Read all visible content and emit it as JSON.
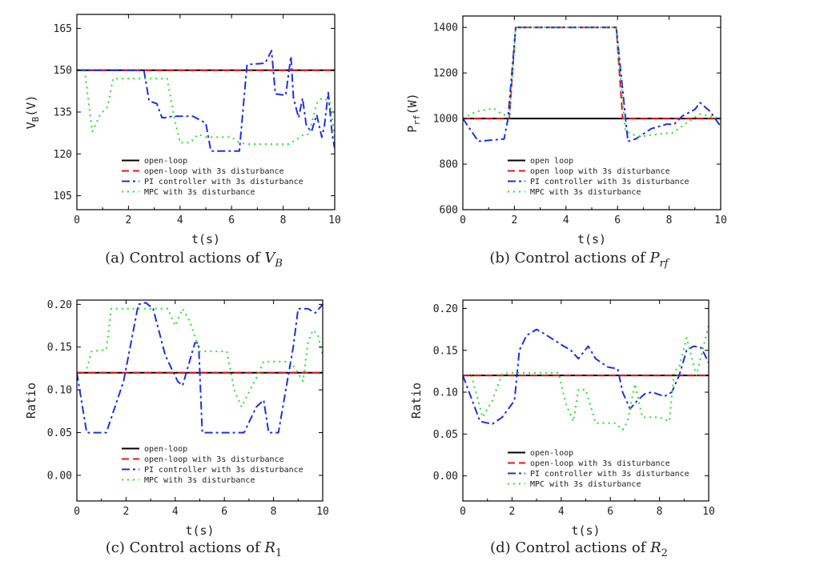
{
  "legend_style": {
    "open-loop": {
      "color": "#000000",
      "dash": "",
      "width": 2
    },
    "open-loop-dist": {
      "color": "#e8141b",
      "dash": "9 5",
      "width": 2
    },
    "pi": {
      "color": "#1f2fe0",
      "dash": "10 4 3 4",
      "width": 2
    },
    "mpc": {
      "color": "#22e02a",
      "dash": "2 5",
      "width": 2
    }
  },
  "chart_data": [
    {
      "id": "a",
      "type": "line",
      "caption": "(a) Control actions of ",
      "caption_math": "V",
      "caption_sub": "B",
      "xlabel": "t(s)",
      "ylabel": "V",
      "ylabel_sub": "B",
      "ylabel_suffix": "(V)",
      "xlim": [
        0,
        10
      ],
      "ylim": [
        100,
        170
      ],
      "xticks": [
        0,
        2,
        4,
        6,
        8,
        10
      ],
      "xticklabels": [
        "0",
        "2",
        "4",
        "6",
        "8",
        "10"
      ],
      "yticks": [
        105,
        120,
        135,
        150,
        165
      ],
      "yticklabels": [
        "105",
        "120",
        "135",
        "150",
        "165"
      ],
      "legend": [
        "open-loop",
        "open-loop with 3s disturbance",
        "PI controller with 3s disturbance",
        "MPC with 3s disturbance"
      ],
      "series": [
        {
          "key": "open-loop",
          "name": "open-loop",
          "x": [
            0,
            10
          ],
          "y": [
            150,
            150
          ]
        },
        {
          "key": "open-loop-dist",
          "name": "open-loop with 3s disturbance",
          "x": [
            0,
            10
          ],
          "y": [
            150,
            150
          ]
        },
        {
          "key": "pi",
          "name": "PI controller with 3s disturbance",
          "x": [
            0,
            2.6,
            2.8,
            3.1,
            3.3,
            3.5,
            3.7,
            4.5,
            5,
            5.2,
            6.3,
            6.6,
            7.3,
            7.55,
            7.7,
            8.1,
            8.3,
            8.4,
            8.6,
            8.75,
            8.9,
            9.1,
            9.3,
            9.5,
            9.6,
            9.75,
            9.9,
            10
          ],
          "y": [
            150,
            150,
            139,
            138,
            133,
            133,
            133.5,
            133.5,
            131,
            121,
            121,
            152,
            152.5,
            157,
            141.5,
            141,
            155,
            140,
            133,
            140,
            130,
            128,
            134,
            126,
            130,
            142,
            127,
            122
          ]
        },
        {
          "key": "mpc",
          "name": "MPC with 3s disturbance",
          "x": [
            0.3,
            0.6,
            0.9,
            1.2,
            1.4,
            3.5,
            3.8,
            4,
            4.4,
            4.7,
            5,
            6,
            6.3,
            6.6,
            8.2,
            8.5,
            8.8,
            9,
            9.3,
            9.5,
            9.8,
            10
          ],
          "y": [
            150,
            128,
            134,
            137,
            147,
            147,
            132,
            124,
            124,
            127,
            126,
            126,
            124,
            123.5,
            123.5,
            125,
            127,
            127,
            138,
            140,
            139,
            126
          ]
        }
      ],
      "legend_position": "bottom-right"
    },
    {
      "id": "b",
      "type": "line",
      "caption": "(b) Control actions of ",
      "caption_math": "P",
      "caption_sub": "rf",
      "xlabel": "t(s)",
      "ylabel": "P",
      "ylabel_sub": "rf",
      "ylabel_suffix": "(W)",
      "xlim": [
        0,
        10
      ],
      "ylim": [
        600,
        1450
      ],
      "xticks": [
        0,
        2,
        4,
        6,
        8,
        10
      ],
      "xticklabels": [
        "0",
        "2",
        "4",
        "6",
        "8",
        "10"
      ],
      "yticks": [
        600,
        800,
        1000,
        1200,
        1400
      ],
      "yticklabels": [
        "600",
        "800",
        "1000",
        "1200",
        "1400"
      ],
      "legend": [
        "open loop",
        "open loop with 3s disturbance",
        "PI controller with 3s disturbance",
        "MPC with 3s disturbance"
      ],
      "series": [
        {
          "key": "open-loop",
          "name": "open loop",
          "x": [
            0,
            10
          ],
          "y": [
            1000,
            1000
          ]
        },
        {
          "key": "open-loop-dist",
          "name": "open loop with 3s disturbance",
          "x": [
            0,
            1.8,
            2.05,
            5.95,
            6.2,
            10
          ],
          "y": [
            1000,
            1000,
            1400,
            1400,
            1000,
            1000
          ]
        },
        {
          "key": "pi",
          "name": "PI controller with 3s disturbance",
          "x": [
            0,
            0.6,
            1.6,
            1.75,
            2.05,
            5.95,
            6.4,
            6.7,
            7.3,
            7.9,
            8.2,
            8.5,
            9,
            9.2,
            9.6,
            10
          ],
          "y": [
            1000,
            900,
            910,
            1000,
            1400,
            1400,
            900,
            910,
            955,
            975,
            975,
            1010,
            1040,
            1070,
            1030,
            965
          ]
        },
        {
          "key": "mpc",
          "name": "MPC with 3s disturbance",
          "x": [
            0,
            0.5,
            1.2,
            1.5,
            1.8,
            2.05,
            5.95,
            6.3,
            6.8,
            7.8,
            8.1,
            8.8,
            9.2,
            9.6,
            10
          ],
          "y": [
            1000,
            1030,
            1045,
            1020,
            1010,
            1400,
            1400,
            945,
            920,
            935,
            935,
            990,
            1020,
            1010,
            1000
          ]
        }
      ],
      "legend_position": "bottom-right"
    },
    {
      "id": "c",
      "type": "line",
      "caption": "(c) Control actions of ",
      "caption_math": "R",
      "caption_sub": "1",
      "xlabel": "t(s)",
      "ylabel": "Ratio",
      "ylabel_sub": "",
      "ylabel_suffix": "",
      "xlim": [
        0,
        10
      ],
      "ylim": [
        -0.03,
        0.205
      ],
      "xticks": [
        0,
        2,
        4,
        6,
        8,
        10
      ],
      "xticklabels": [
        "0",
        "2",
        "4",
        "6",
        "8",
        "10"
      ],
      "yticks": [
        0,
        0.05,
        0.1,
        0.15,
        0.2
      ],
      "yticklabels": [
        "0.00",
        "0.05",
        "0.10",
        "0.15",
        "0.20"
      ],
      "legend": [
        "open-loop",
        "open-loop with 3s disturbance",
        "PI controller with 3s disturbance",
        "MPC with 3s disturbance"
      ],
      "series": [
        {
          "key": "open-loop",
          "name": "open-loop",
          "x": [
            0,
            10
          ],
          "y": [
            0.12,
            0.12
          ]
        },
        {
          "key": "open-loop-dist",
          "name": "open-loop with 3s disturbance",
          "x": [
            0,
            10
          ],
          "y": [
            0.12,
            0.12
          ]
        },
        {
          "key": "pi",
          "name": "PI controller with 3s disturbance",
          "x": [
            0,
            0.4,
            1.2,
            1.9,
            2.1,
            2.5,
            2.8,
            3.1,
            3.6,
            4.1,
            4.3,
            4.8,
            4.95,
            5.1,
            6.2,
            6.8,
            7.3,
            7.6,
            7.8,
            8.2,
            8.5,
            8.8,
            9,
            9.4,
            9.7,
            10
          ],
          "y": [
            0.12,
            0.05,
            0.05,
            0.11,
            0.14,
            0.2,
            0.202,
            0.195,
            0.14,
            0.11,
            0.105,
            0.155,
            0.155,
            0.05,
            0.05,
            0.05,
            0.08,
            0.088,
            0.05,
            0.05,
            0.1,
            0.15,
            0.195,
            0.195,
            0.19,
            0.2
          ]
        },
        {
          "key": "mpc",
          "name": "MPC with 3s disturbance",
          "x": [
            0.4,
            0.6,
            1.2,
            1.4,
            3.7,
            4,
            4.3,
            4.6,
            5,
            6.1,
            6.4,
            6.7,
            7.4,
            7.6,
            7.8,
            8.7,
            9.2,
            9.4,
            9.6,
            9.8,
            10
          ],
          "y": [
            0.125,
            0.145,
            0.147,
            0.195,
            0.195,
            0.175,
            0.195,
            0.18,
            0.145,
            0.145,
            0.1,
            0.08,
            0.12,
            0.133,
            0.133,
            0.133,
            0.11,
            0.155,
            0.17,
            0.165,
            0.14
          ]
        }
      ],
      "legend_position": "bottom-right"
    },
    {
      "id": "d",
      "type": "line",
      "caption": "(d) Control actions of ",
      "caption_math": "R",
      "caption_sub": "2",
      "xlabel": "t(s)",
      "ylabel": "Ratio",
      "ylabel_sub": "",
      "ylabel_suffix": "",
      "xlim": [
        0,
        10
      ],
      "ylim": [
        -0.03,
        0.21
      ],
      "xticks": [
        0,
        2,
        4,
        6,
        8,
        10
      ],
      "xticklabels": [
        "0",
        "2",
        "4",
        "6",
        "8",
        "10"
      ],
      "yticks": [
        0,
        0.05,
        0.1,
        0.15,
        0.2
      ],
      "yticklabels": [
        "0.00",
        "0.05",
        "0.10",
        "0.15",
        "0.20"
      ],
      "legend": [
        "open-loop",
        "open-loop with 3s disturbance",
        "PI controller with 3s disturbance",
        "MPC with 3s disturbance"
      ],
      "series": [
        {
          "key": "open-loop",
          "name": "open-loop",
          "x": [
            0,
            10
          ],
          "y": [
            0.12,
            0.12
          ]
        },
        {
          "key": "open-loop-dist",
          "name": "open-loop with 3s disturbance",
          "x": [
            0,
            10
          ],
          "y": [
            0.12,
            0.12
          ]
        },
        {
          "key": "pi",
          "name": "PI controller with 3s disturbance",
          "x": [
            0,
            0.7,
            1.2,
            1.6,
            2.1,
            2.3,
            2.6,
            3,
            3.3,
            4.1,
            4.4,
            4.7,
            5.1,
            5.4,
            5.9,
            6.3,
            6.5,
            6.8,
            7.1,
            7.4,
            7.7,
            8.2,
            8.5,
            8.8,
            9.1,
            9.4,
            9.7,
            10
          ],
          "y": [
            0.12,
            0.065,
            0.062,
            0.07,
            0.09,
            0.15,
            0.168,
            0.175,
            0.17,
            0.155,
            0.15,
            0.14,
            0.155,
            0.14,
            0.13,
            0.128,
            0.1,
            0.08,
            0.09,
            0.098,
            0.1,
            0.095,
            0.1,
            0.12,
            0.15,
            0.155,
            0.153,
            0.135
          ]
        },
        {
          "key": "mpc",
          "name": "MPC with 3s disturbance",
          "x": [
            0.35,
            0.8,
            1.2,
            1.6,
            1.9,
            3.9,
            4.2,
            4.5,
            4.7,
            5,
            5.4,
            5.8,
            6.2,
            6.5,
            6.7,
            7,
            7.3,
            8,
            8.4,
            8.6,
            8.8,
            9.1,
            9.5,
            10
          ],
          "y": [
            0.12,
            0.07,
            0.09,
            0.122,
            0.123,
            0.123,
            0.085,
            0.065,
            0.103,
            0.103,
            0.063,
            0.063,
            0.063,
            0.055,
            0.065,
            0.11,
            0.07,
            0.07,
            0.065,
            0.125,
            0.13,
            0.165,
            0.12,
            0.18
          ]
        }
      ],
      "legend_position": "bottom-right"
    }
  ]
}
